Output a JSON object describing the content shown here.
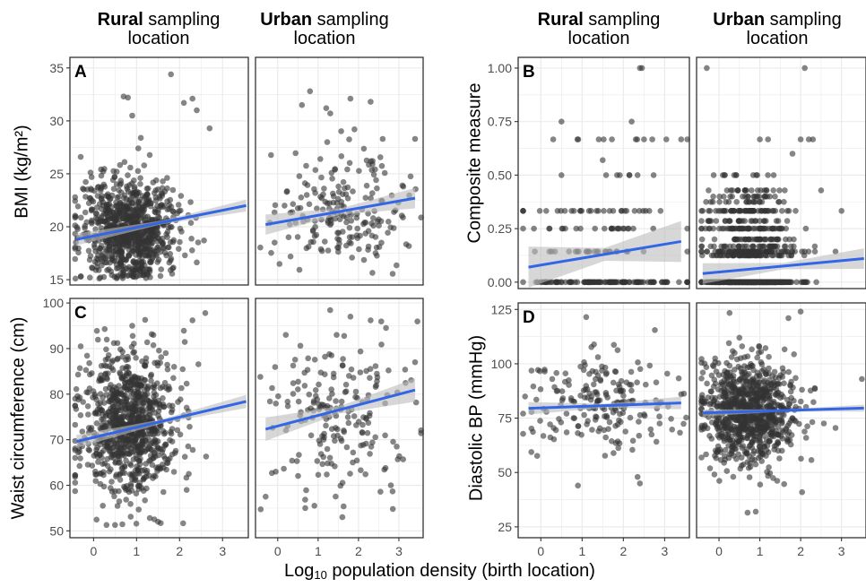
{
  "facets": {
    "rural_word": "Rural",
    "urban_word": "Urban",
    "rest_line1": " sampling",
    "rest_line2": "location"
  },
  "x_axis": {
    "label_prefix": "Log",
    "label_sub": "10",
    "label_rest": " population density (birth location)"
  },
  "colors": {
    "point": "#333333",
    "fit_line": "#3366e6",
    "ribbon": "#bdbdbd",
    "grid": "#ebebeb",
    "panel_border": "#333333"
  },
  "chart_data": [
    {
      "type": "scatter",
      "panel_letter": "A",
      "ylabel": "BMI (kg/m²)",
      "ylim": [
        14.5,
        36
      ],
      "yticks": [
        15,
        20,
        25,
        30,
        35
      ],
      "xlim": [
        -0.55,
        3.6
      ],
      "xticks": [
        0,
        1,
        2,
        3
      ],
      "grid": true,
      "facets": [
        {
          "facet": "Rural sampling location",
          "n_points": 900,
          "x_center": 0.8,
          "x_sd": 0.55,
          "y_center": 19.6,
          "y_sd": 2.4,
          "y_floor": 15.1,
          "fit": {
            "x": [
              -0.4,
              3.55
            ],
            "y": [
              18.8,
              22.0
            ]
          },
          "ci": 0.35,
          "outliers": [
            [
              1.8,
              34.4
            ],
            [
              0.7,
              32.3
            ],
            [
              0.8,
              32.2
            ],
            [
              2.3,
              32.1
            ],
            [
              2.1,
              31.7
            ],
            [
              2.4,
              31.0
            ],
            [
              0.9,
              30.5
            ],
            [
              2.7,
              29.3
            ],
            [
              1.1,
              28.4
            ],
            [
              -0.3,
              26.6
            ]
          ]
        },
        {
          "facet": "Urban sampling location",
          "n_points": 200,
          "x_center": 1.5,
          "x_sd": 0.85,
          "y_center": 21.2,
          "y_sd": 2.8,
          "y_floor": 15.3,
          "fit": {
            "x": [
              -0.3,
              3.4
            ],
            "y": [
              20.2,
              22.7
            ]
          },
          "ci": 0.6,
          "outliers": [
            [
              0.8,
              32.8
            ],
            [
              1.2,
              31.2
            ],
            [
              1.8,
              32.1
            ],
            [
              2.3,
              31.8
            ],
            [
              1.3,
              30.7
            ],
            [
              0.6,
              31.5
            ],
            [
              3.4,
              28.3
            ],
            [
              2.6,
              28.3
            ],
            [
              1.9,
              29.2
            ]
          ]
        }
      ]
    },
    {
      "type": "scatter",
      "panel_letter": "B",
      "ylabel": "Composite measure",
      "ylim": [
        -0.03,
        1.05
      ],
      "yticks": [
        0.0,
        0.25,
        0.5,
        0.75,
        1.0
      ],
      "yticklabels": [
        "0.00",
        "0.25",
        "0.50",
        "0.75",
        "1.00"
      ],
      "xlim": [
        -0.55,
        3.6
      ],
      "xticks": [
        0,
        1,
        2,
        3
      ],
      "grid": true,
      "facets": [
        {
          "facet": "Rural sampling location",
          "discrete_levels": [
            0,
            0.143,
            0.25,
            0.333,
            0.5,
            0.667
          ],
          "level_counts": [
            120,
            25,
            25,
            30,
            8,
            8
          ],
          "x_center": 1.5,
          "x_sd": 0.85,
          "fit": {
            "x": [
              -0.3,
              3.4
            ],
            "y": [
              0.07,
              0.19
            ]
          },
          "ci": 0.06,
          "outliers": [
            [
              2.4,
              1.0
            ],
            [
              2.45,
              1.0
            ],
            [
              0.5,
              0.75
            ],
            [
              2.2,
              0.75
            ],
            [
              2.3,
              0.667
            ],
            [
              2.5,
              0.667
            ],
            [
              2.7,
              0.667
            ],
            [
              1.5,
              0.57
            ],
            [
              0.3,
              0.667
            ],
            [
              3.4,
              0.667
            ]
          ]
        },
        {
          "facet": "Urban sampling location",
          "discrete_levels": [
            0,
            0.125,
            0.143,
            0.167,
            0.2,
            0.25,
            0.286,
            0.333,
            0.375,
            0.4,
            0.429,
            0.5
          ],
          "level_counts": [
            500,
            60,
            90,
            40,
            40,
            60,
            30,
            60,
            20,
            20,
            20,
            12
          ],
          "x_center": 0.75,
          "x_sd": 0.55,
          "fit": {
            "x": [
              -0.4,
              3.55
            ],
            "y": [
              0.04,
              0.11
            ]
          },
          "ci": 0.03,
          "outliers": [
            [
              -0.3,
              1.0
            ],
            [
              2.1,
              1.0
            ],
            [
              1.0,
              0.667
            ],
            [
              1.2,
              0.667
            ],
            [
              2.0,
              0.667
            ],
            [
              2.2,
              0.667
            ],
            [
              2.3,
              0.667
            ],
            [
              1.8,
              0.6
            ],
            [
              2.5,
              0.429
            ],
            [
              3.0,
              0.333
            ]
          ]
        }
      ]
    },
    {
      "type": "scatter",
      "panel_letter": "C",
      "ylabel": "Waist circumference (cm)",
      "ylim": [
        48.5,
        101
      ],
      "yticks": [
        50,
        60,
        70,
        80,
        90,
        100
      ],
      "xlim": [
        -0.55,
        3.6
      ],
      "xticks": [
        0,
        1,
        2,
        3
      ],
      "xticklabels": [
        "0",
        "1",
        "2",
        "3"
      ],
      "grid": true,
      "facets": [
        {
          "facet": "Rural sampling location",
          "n_points": 900,
          "x_center": 0.8,
          "x_sd": 0.55,
          "y_center": 73.5,
          "y_sd": 7.5,
          "y_floor": 51,
          "fit": {
            "x": [
              -0.4,
              3.55
            ],
            "y": [
              69.6,
              78.4
            ]
          },
          "ci": 0.9,
          "outliers": [
            [
              2.6,
              97.8
            ],
            [
              1.2,
              96.3
            ],
            [
              2.3,
              96.2
            ],
            [
              0.9,
              95.0
            ],
            [
              2.1,
              93.9
            ],
            [
              -0.3,
              90.5
            ],
            [
              0.3,
              51.3
            ],
            [
              0.5,
              51.3
            ],
            [
              1.5,
              52.0
            ]
          ]
        },
        {
          "facet": "Urban sampling location",
          "n_points": 200,
          "x_center": 1.5,
          "x_sd": 0.85,
          "y_center": 75.5,
          "y_sd": 9.5,
          "y_floor": 53,
          "fit": {
            "x": [
              -0.3,
              3.4
            ],
            "y": [
              72.3,
              80.9
            ]
          },
          "ci": 1.6,
          "outliers": [
            [
              1.8,
              97.0
            ],
            [
              2.3,
              96.2
            ],
            [
              0.2,
              93.0
            ],
            [
              3.4,
              87.0
            ],
            [
              1.6,
              53.0
            ],
            [
              -0.3,
              57.5
            ],
            [
              2.8,
              60.0
            ]
          ]
        }
      ]
    },
    {
      "type": "scatter",
      "panel_letter": "D",
      "ylabel": "Diastolic BP (mmHg)",
      "ylim": [
        20,
        128
      ],
      "yticks": [
        25,
        50,
        75,
        100,
        125
      ],
      "xlim": [
        -0.55,
        3.6
      ],
      "xticks": [
        0,
        1,
        2,
        3
      ],
      "xticklabels": [
        "0",
        "1",
        "2",
        "3"
      ],
      "grid": true,
      "facets": [
        {
          "facet": "Rural sampling location",
          "n_points": 200,
          "x_center": 1.5,
          "x_sd": 0.85,
          "y_center": 81,
          "y_sd": 11,
          "y_floor": 44,
          "fit": {
            "x": [
              -0.3,
              3.4
            ],
            "y": [
              79.5,
              82.0
            ]
          },
          "ci": 1.8,
          "outliers": [
            [
              1.1,
              121.5
            ],
            [
              2.4,
              45.0
            ],
            [
              0.9,
              44.0
            ],
            [
              3.4,
              86.0
            ]
          ]
        },
        {
          "facet": "Urban sampling location",
          "n_points": 900,
          "x_center": 0.75,
          "x_sd": 0.55,
          "y_center": 78,
          "y_sd": 12,
          "y_floor": 31,
          "fit": {
            "x": [
              -0.4,
              3.55
            ],
            "y": [
              77.4,
              79.6
            ]
          },
          "ci": 1.0,
          "outliers": [
            [
              2.0,
              124.0
            ],
            [
              1.7,
              121.0
            ],
            [
              0.5,
              112.0
            ],
            [
              0.7,
              31.5
            ],
            [
              0.9,
              32.0
            ],
            [
              3.5,
              93.0
            ]
          ]
        }
      ]
    }
  ]
}
